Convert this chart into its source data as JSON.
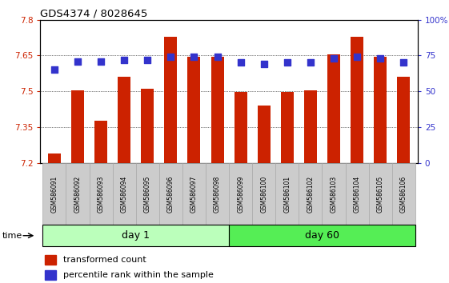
{
  "title": "GDS4374 / 8028645",
  "samples": [
    "GSM586091",
    "GSM586092",
    "GSM586093",
    "GSM586094",
    "GSM586095",
    "GSM586096",
    "GSM586097",
    "GSM586098",
    "GSM586099",
    "GSM586100",
    "GSM586101",
    "GSM586102",
    "GSM586103",
    "GSM586104",
    "GSM586105",
    "GSM586106"
  ],
  "red_values": [
    7.24,
    7.505,
    7.375,
    7.56,
    7.51,
    7.73,
    7.645,
    7.645,
    7.497,
    7.44,
    7.497,
    7.505,
    7.655,
    7.73,
    7.645,
    7.56
  ],
  "blue_values_pct": [
    65,
    71,
    71,
    72,
    72,
    74,
    74,
    74,
    70,
    69,
    70,
    70,
    73,
    74,
    73,
    70
  ],
  "ymin": 7.2,
  "ymax": 7.8,
  "yticks_left": [
    7.2,
    7.35,
    7.5,
    7.65,
    7.8
  ],
  "ytick_labels_left": [
    "7.2",
    "7.35",
    "7.5",
    "7.65",
    "7.8"
  ],
  "right_yticks_pct": [
    0,
    25,
    50,
    75,
    100
  ],
  "right_ytick_labels": [
    "0",
    "25",
    "50",
    "75",
    "100%"
  ],
  "day1_samples": 8,
  "day60_samples": 8,
  "bar_color": "#cc2200",
  "dot_color": "#3333cc",
  "day1_color": "#bbffbb",
  "day60_color": "#55ee55",
  "tick_label_bg": "#cccccc",
  "tick_label_ec": "#aaaaaa",
  "legend_red_label": "transformed count",
  "legend_blue_label": "percentile rank within the sample",
  "time_label": "time",
  "day1_label": "day 1",
  "day60_label": "day 60"
}
